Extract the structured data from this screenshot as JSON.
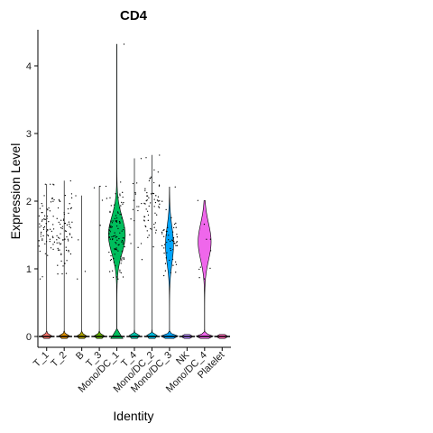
{
  "chart_data": {
    "type": "violin",
    "title": "CD4",
    "xlabel": "Identity",
    "ylabel": "Expression Level",
    "ylim": [
      -0.2,
      4.5
    ],
    "yticks": [
      0,
      1,
      2,
      3,
      4
    ],
    "grid": false,
    "categories": [
      "T_1",
      "T_2",
      "B",
      "T_3",
      "Mono/DC_1",
      "T_4",
      "Mono/DC_2",
      "Mono/DC_3",
      "NK",
      "Mono/DC_4",
      "Platelet"
    ],
    "series": [
      {
        "category": "T_1",
        "color": "#F8766D",
        "max": 2.25,
        "zero_mass": 0.82,
        "mode": 1.6,
        "points": 70
      },
      {
        "category": "T_2",
        "color": "#DB8E00",
        "max": 2.3,
        "zero_mass": 0.85,
        "mode": 1.5,
        "points": 70
      },
      {
        "category": "B",
        "color": "#AEA200",
        "max": 2.08,
        "zero_mass": 0.99,
        "mode": 1.2,
        "points": 4
      },
      {
        "category": "T_3",
        "color": "#64B200",
        "max": 2.22,
        "zero_mass": 0.97,
        "mode": 1.8,
        "points": 6
      },
      {
        "category": "Mono/DC_1",
        "color": "#00BD5C",
        "max": 4.32,
        "zero_mass": 0.45,
        "mode": 1.5,
        "points": 110
      },
      {
        "category": "T_4",
        "color": "#00C1A7",
        "max": 2.63,
        "zero_mass": 0.95,
        "mode": 1.8,
        "points": 18
      },
      {
        "category": "Mono/DC_2",
        "color": "#00BADE",
        "max": 2.68,
        "zero_mass": 0.92,
        "mode": 1.9,
        "points": 60
      },
      {
        "category": "Mono/DC_3",
        "color": "#00A6FF",
        "max": 2.21,
        "zero_mass": 0.55,
        "mode": 1.35,
        "points": 55
      },
      {
        "category": "NK",
        "color": "#B385FF",
        "max": 0.0,
        "zero_mass": 1.0,
        "mode": 0,
        "points": 0
      },
      {
        "category": "Mono/DC_4",
        "color": "#EF67EB",
        "max": 2.01,
        "zero_mass": 0.42,
        "mode": 1.4,
        "points": 10
      },
      {
        "category": "Platelet",
        "color": "#FF63B6",
        "max": 0.0,
        "zero_mass": 1.0,
        "mode": 0,
        "points": 0
      }
    ]
  }
}
